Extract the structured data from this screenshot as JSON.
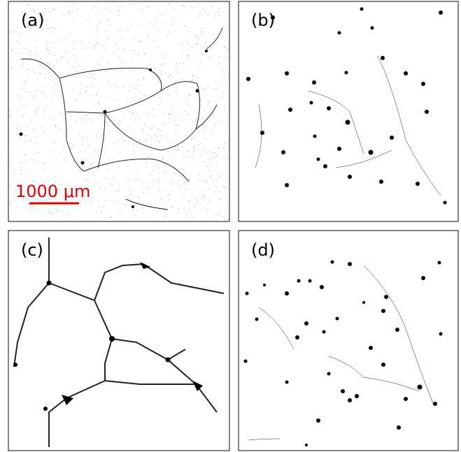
{
  "panels": [
    {
      "label": "(a)"
    },
    {
      "label": "(b)"
    },
    {
      "label": "(c)"
    },
    {
      "label": "(d)"
    }
  ],
  "scale_bar": {
    "label": "1000 μm"
  }
}
